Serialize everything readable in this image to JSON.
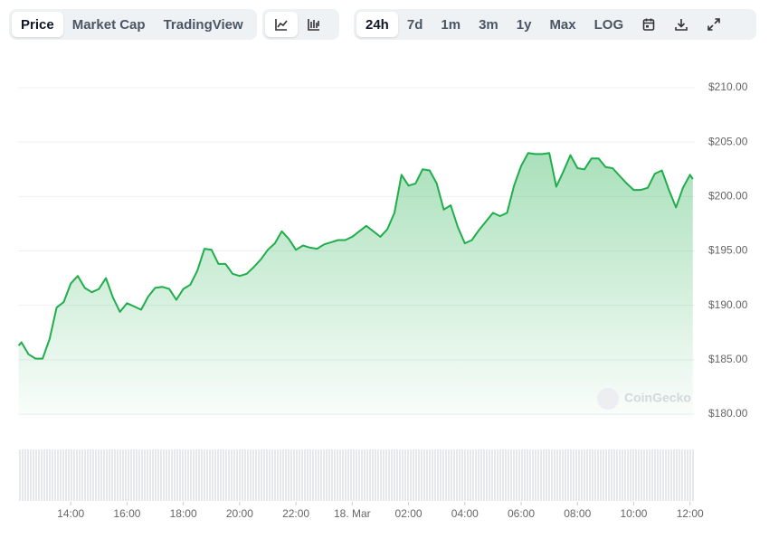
{
  "toolbar": {
    "views": [
      "Price",
      "Market Cap",
      "TradingView"
    ],
    "ranges": [
      "24h",
      "7d",
      "1m",
      "3m",
      "1y",
      "Max"
    ],
    "scale": "LOG"
  },
  "chart_data": {
    "type": "area",
    "watermark": "CoinGecko",
    "color": "#1fae4b",
    "x": [
      12.15,
      12.25,
      12.5,
      12.75,
      13.0,
      13.25,
      13.5,
      13.75,
      14.0,
      14.25,
      14.5,
      14.75,
      15.0,
      15.25,
      15.5,
      15.75,
      16.0,
      16.25,
      16.5,
      16.75,
      17.0,
      17.25,
      17.5,
      17.75,
      18.0,
      18.25,
      18.5,
      18.75,
      19.0,
      19.25,
      19.5,
      19.75,
      20.0,
      20.25,
      20.5,
      20.75,
      21.0,
      21.25,
      21.5,
      21.75,
      22.0,
      22.25,
      22.5,
      22.75,
      23.0,
      23.25,
      23.5,
      23.75,
      24.0,
      24.25,
      24.5,
      24.75,
      25.0,
      25.25,
      25.5,
      25.75,
      26.0,
      26.25,
      26.5,
      26.75,
      27.0,
      27.25,
      27.5,
      27.75,
      28.0,
      28.25,
      28.5,
      28.75,
      29.0,
      29.25,
      29.5,
      29.75,
      30.0,
      30.25,
      30.5,
      30.75,
      31.0,
      31.25,
      31.5,
      31.75,
      32.0,
      32.25,
      32.5,
      32.75,
      33.0,
      33.25,
      33.5,
      33.75,
      34.0,
      34.25,
      34.5,
      34.75,
      35.0,
      35.25,
      35.5,
      35.75,
      36.0,
      36.1
    ],
    "values": [
      186.3,
      186.6,
      185.5,
      185.1,
      185.1,
      186.9,
      189.8,
      190.3,
      192.0,
      192.7,
      191.6,
      191.2,
      191.5,
      192.5,
      190.7,
      189.4,
      190.2,
      189.9,
      189.6,
      190.8,
      191.6,
      191.7,
      191.5,
      190.5,
      191.5,
      191.9,
      193.2,
      195.2,
      195.1,
      193.8,
      193.8,
      192.9,
      192.7,
      192.9,
      193.5,
      194.2,
      195.1,
      195.7,
      196.8,
      196.1,
      195.1,
      195.5,
      195.3,
      195.2,
      195.6,
      195.8,
      196.0,
      196.0,
      196.3,
      196.8,
      197.3,
      196.8,
      196.3,
      197.0,
      198.5,
      202.0,
      201.0,
      201.2,
      202.5,
      202.4,
      201.2,
      198.8,
      199.2,
      197.2,
      195.7,
      196.0,
      196.9,
      197.7,
      198.5,
      198.2,
      198.5,
      201.0,
      202.8,
      204.0,
      203.9,
      203.9,
      204.0,
      200.9,
      202.3,
      203.8,
      202.6,
      202.5,
      203.5,
      203.5,
      202.7,
      202.6,
      201.9,
      201.2,
      200.6,
      200.6,
      200.8,
      202.1,
      202.4,
      200.6,
      199.0,
      200.8,
      202.0,
      201.6
    ],
    "xlim": [
      12.13,
      36.17
    ],
    "xticks": [
      {
        "value": 14,
        "label": "14:00"
      },
      {
        "value": 16,
        "label": "16:00"
      },
      {
        "value": 18,
        "label": "18:00"
      },
      {
        "value": 20,
        "label": "20:00"
      },
      {
        "value": 22,
        "label": "22:00"
      },
      {
        "value": 24,
        "label": "18. Mar"
      },
      {
        "value": 26,
        "label": "02:00"
      },
      {
        "value": 28,
        "label": "04:00"
      },
      {
        "value": 30,
        "label": "06:00"
      },
      {
        "value": 32,
        "label": "08:00"
      },
      {
        "value": 34,
        "label": "10:00"
      },
      {
        "value": 36,
        "label": "12:00"
      }
    ],
    "ylim": [
      180,
      210
    ],
    "yticks": [
      {
        "value": 180,
        "label": "$180.00"
      },
      {
        "value": 185,
        "label": "$185.00"
      },
      {
        "value": 190,
        "label": "$190.00"
      },
      {
        "value": 195,
        "label": "$195.00"
      },
      {
        "value": 200,
        "label": "$200.00"
      },
      {
        "value": 205,
        "label": "$205.00"
      },
      {
        "value": 210,
        "label": "$210.00"
      }
    ],
    "grid": true
  }
}
